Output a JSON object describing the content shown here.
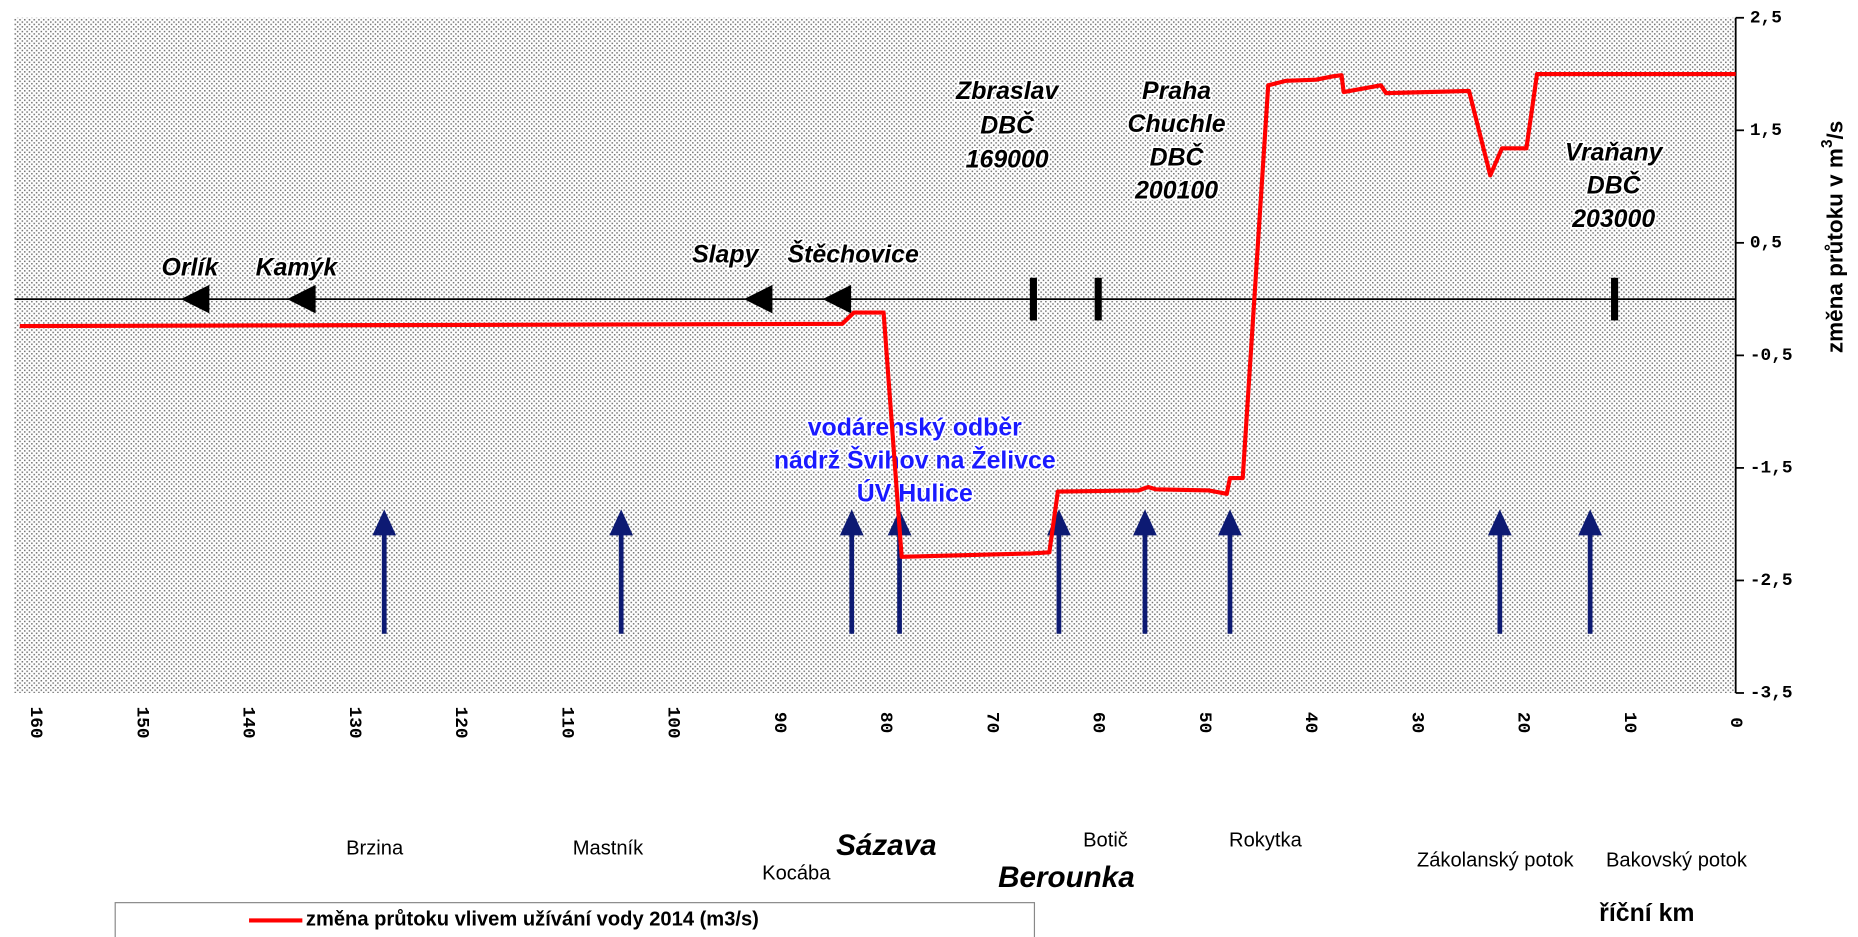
{
  "chart_data": {
    "type": "line",
    "x": [
      161.5,
      84.1,
      83,
      80.2,
      78.5,
      66.3,
      64.6,
      63.8,
      56.2,
      55.3,
      54.6,
      49.6,
      47.9,
      47.6,
      46.4,
      44,
      42.3,
      39.5,
      37.9,
      37.1,
      36.9,
      33.4,
      32.9,
      25.1,
      23.1,
      22,
      19.7,
      18.7,
      16.1,
      9.5,
      0
    ],
    "series": [
      {
        "name": "změna průtoku vlivem užívání vody 2014 (m3/s)",
        "color": "#ff0000",
        "values": [
          -0.24,
          -0.22,
          -0.12,
          -0.12,
          -2.29,
          -2.26,
          -2.25,
          -1.71,
          -1.7,
          -1.67,
          -1.69,
          -1.7,
          -1.73,
          -1.59,
          -1.59,
          1.9,
          1.94,
          1.95,
          1.98,
          1.99,
          1.84,
          1.9,
          1.83,
          1.85,
          1.1,
          1.34,
          1.34,
          2.0,
          2.0,
          2.0,
          2.0
        ]
      }
    ],
    "xlim": [
      162,
      0
    ],
    "ylim": [
      -3.5,
      2.5
    ],
    "xticks": [
      160,
      150,
      140,
      130,
      120,
      110,
      100,
      90,
      80,
      70,
      60,
      50,
      40,
      30,
      20,
      10,
      0
    ],
    "yticks": [
      {
        "value": 2.5,
        "label": "2,5"
      },
      {
        "value": 1.5,
        "label": "1,5"
      },
      {
        "value": 0.5,
        "label": "0,5"
      },
      {
        "value": -0.5,
        "label": "-0,5"
      },
      {
        "value": -1.5,
        "label": "-1,5"
      },
      {
        "value": -2.5,
        "label": "-2,5"
      },
      {
        "value": -3.5,
        "label": "-3,5"
      }
    ],
    "x_label": "říční km",
    "y_label": "změna průtoku v m",
    "y_label_sup": "3",
    "y_label_end": "/s",
    "reservoirs": [
      {
        "label": "Orlík",
        "km": 145
      },
      {
        "label": "Kamýk",
        "km": 135
      },
      {
        "label": "Slapy",
        "km": 92
      },
      {
        "label": "Štěchovice",
        "km": 84.6
      }
    ],
    "stations": [
      {
        "lines": [
          "Zbraslav",
          "DBČ",
          "169000"
        ],
        "km": 66.1
      },
      {
        "lines": [
          "Praha",
          "Chuchle",
          "DBČ",
          "200100"
        ],
        "km": 60
      },
      {
        "lines": [
          "Vraňany",
          "DBČ",
          "203000"
        ],
        "km": 11.4
      }
    ],
    "tributaries": [
      {
        "name": "Brzina",
        "km": 127.2
      },
      {
        "name": "Mastník",
        "km": 104.9
      },
      {
        "name": "Kocába",
        "km": 83.2
      },
      {
        "name": "Sázava",
        "km": 78.7
      },
      {
        "name": "Berounka",
        "km": 63.7
      },
      {
        "name": "Botič",
        "km": 55.6
      },
      {
        "name": "Rokytka",
        "km": 47.6
      },
      {
        "name": "Zákolanský potok",
        "km": 22.2
      },
      {
        "name": "Bakovský potok",
        "km": 13.7
      }
    ],
    "abstraction_note": [
      "vodárenský odběr",
      "nádrž Švihov na Želivce",
      "ÚV Hulice"
    ]
  }
}
